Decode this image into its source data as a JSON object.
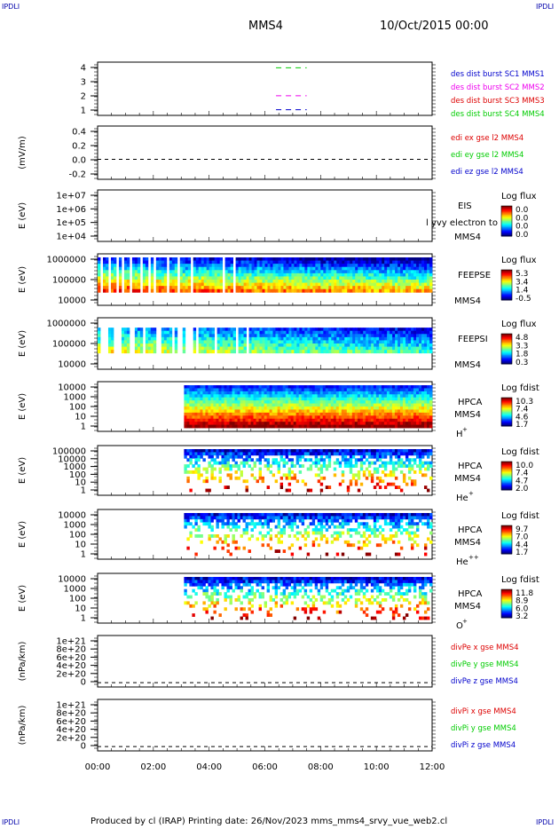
{
  "corner_labels": {
    "top_left": "IPDLI",
    "top_right": "IPDLI",
    "bottom_left": "IPDLI",
    "bottom_right": "IPDLI"
  },
  "header": {
    "title": "MMS4",
    "date": "10/Oct/2015 00:00"
  },
  "footer": {
    "text": "Produced by cl (IRAP)   Printing date: 26/Nov/2023   mms_mms4_srvy_vue_web2.cl"
  },
  "chart_data": {
    "type": "heatmap",
    "x_axis": {
      "ticks": [
        "00:00",
        "02:00",
        "04:00",
        "06:00",
        "08:00",
        "10:00",
        "12:00"
      ],
      "xlim_hours": [
        0,
        12
      ]
    },
    "colors": {
      "red": "#dd0000",
      "magenta": "#ee00ee",
      "green": "#00cc00",
      "blue": "#0000cc",
      "dashed": "#000000"
    },
    "panels": [
      {
        "id": "burst",
        "type": "line",
        "ylabel": "",
        "yticks": [
          "4",
          "3",
          "2",
          "1"
        ],
        "ylim": [
          0.6,
          4.4
        ],
        "legend": [
          {
            "text": "des dist burst SC1 MMS1",
            "color": "#0000cc"
          },
          {
            "text": "des dist burst SC2 MMS2",
            "color": "#ee00ee"
          },
          {
            "text": "des dist burst SC3 MMS3",
            "color": "#dd0000"
          },
          {
            "text": "des dist burst SC4 MMS4",
            "color": "#00cc00"
          }
        ],
        "series": [
          {
            "name": "des dist burst SC1 MMS1",
            "y": 1,
            "x_hours": [
              6.4,
              7.5
            ],
            "color": "#0000cc"
          },
          {
            "name": "des dist burst SC2 MMS2",
            "y": 2,
            "x_hours": [
              6.4,
              7.5
            ],
            "color": "#ee00ee"
          },
          {
            "name": "des dist burst SC4 MMS4",
            "y": 4,
            "x_hours": [
              6.4,
              7.5
            ],
            "color": "#00cc00"
          }
        ]
      },
      {
        "id": "edi",
        "type": "line",
        "ylabel": "(mV/m)",
        "yticks": [
          "0.4",
          "0.2",
          "0.0",
          "-0.2"
        ],
        "ylim": [
          -0.3,
          0.5
        ],
        "legend": [
          {
            "text": "edi ex gse l2 MMS4",
            "color": "#dd0000"
          },
          {
            "text": "edi ey gse l2 MMS4",
            "color": "#00cc00"
          },
          {
            "text": "edi ez gse l2 MMS4",
            "color": "#0000cc"
          }
        ],
        "dashed_level": 0.0
      },
      {
        "id": "eis",
        "type": "heatmap",
        "ylabel": "E (eV)",
        "yticks": [
          "1e+07",
          "1e+06",
          "1e+05",
          "1e+04"
        ],
        "instrument": [
          "EIS",
          "MMS4"
        ],
        "overlay_text": "l yvy electron to",
        "cbar_title": "Log flux",
        "cbar_ticks": [
          "0.0",
          "0.0",
          "0.0",
          "0.0"
        ]
      },
      {
        "id": "feepse",
        "type": "heatmap",
        "ylabel": "E (eV)",
        "yticks": [
          "1000000",
          "100000",
          "10000"
        ],
        "instrument": [
          "FEEPSE",
          "MMS4"
        ],
        "cbar_title": "Log flux",
        "cbar_ticks": [
          "5.3",
          "3.4",
          "1.4",
          "-0.5"
        ],
        "coverage_hours": [
          0.0,
          12.0
        ]
      },
      {
        "id": "feepsi",
        "type": "heatmap",
        "ylabel": "E (eV)",
        "yticks": [
          "1000000",
          "100000",
          "10000"
        ],
        "instrument": [
          "FEEPSI",
          "MMS4"
        ],
        "cbar_title": "Log flux",
        "cbar_ticks": [
          "4.8",
          "3.3",
          "1.8",
          "0.3"
        ],
        "coverage_hours": [
          0.0,
          12.0
        ]
      },
      {
        "id": "hpca_h",
        "type": "heatmap",
        "ylabel": "E (eV)",
        "yticks": [
          "10000",
          "1000",
          "100",
          "10",
          "1"
        ],
        "instrument": [
          "HPCA",
          "MMS4",
          "H",
          "+"
        ],
        "cbar_title": "Log fdist",
        "cbar_ticks": [
          "10.3",
          "7.4",
          "4.6",
          "1.7"
        ],
        "coverage_hours": [
          3.1,
          12.0
        ]
      },
      {
        "id": "hpca_he",
        "type": "heatmap",
        "ylabel": "E (eV)",
        "yticks": [
          "100000",
          "10000",
          "1000",
          "100",
          "10",
          "1"
        ],
        "instrument": [
          "HPCA",
          "MMS4",
          "He",
          "+"
        ],
        "cbar_title": "Log fdist",
        "cbar_ticks": [
          "10.0",
          "7.4",
          "4.7",
          "2.0"
        ],
        "coverage_hours": [
          3.1,
          12.0
        ]
      },
      {
        "id": "hpca_hepp",
        "type": "heatmap",
        "ylabel": "E (eV)",
        "yticks": [
          "10000",
          "1000",
          "100",
          "10",
          "1"
        ],
        "instrument": [
          "HPCA",
          "MMS4",
          "He",
          "++"
        ],
        "cbar_title": "Log fdist",
        "cbar_ticks": [
          "9.7",
          "7.0",
          "4.4",
          "1.7"
        ],
        "coverage_hours": [
          3.1,
          12.0
        ]
      },
      {
        "id": "hpca_o",
        "type": "heatmap",
        "ylabel": "E (eV)",
        "yticks": [
          "10000",
          "1000",
          "100",
          "10",
          "1"
        ],
        "instrument": [
          "HPCA",
          "MMS4",
          "O",
          "+"
        ],
        "cbar_title": "Log fdist",
        "cbar_ticks": [
          "11.8",
          "8.9",
          "6.0",
          "3.2"
        ],
        "coverage_hours": [
          3.1,
          12.0
        ]
      },
      {
        "id": "divpe",
        "type": "line",
        "ylabel": "(nPa/km)",
        "yticks": [
          "1e+21",
          "8e+20",
          "6e+20",
          "4e+20",
          "2e+20",
          "0"
        ],
        "ylim": [
          -1e+20,
          1.1e+21
        ],
        "legend": [
          {
            "text": "divPe x gse MMS4",
            "color": "#dd0000"
          },
          {
            "text": "divPe y gse MMS4",
            "color": "#00cc00"
          },
          {
            "text": "divPe z gse MMS4",
            "color": "#0000cc"
          }
        ],
        "dashed_level": 0
      },
      {
        "id": "divpi",
        "type": "line",
        "ylabel": "(nPa/km)",
        "yticks": [
          "1e+21",
          "8e+20",
          "6e+20",
          "4e+20",
          "2e+20",
          "0"
        ],
        "ylim": [
          -1e+20,
          1.1e+21
        ],
        "legend": [
          {
            "text": "divPi x gse MMS4",
            "color": "#dd0000"
          },
          {
            "text": "divPi y gse MMS4",
            "color": "#00cc00"
          },
          {
            "text": "divPi z gse MMS4",
            "color": "#0000cc"
          }
        ],
        "dashed_level": 0
      }
    ]
  }
}
